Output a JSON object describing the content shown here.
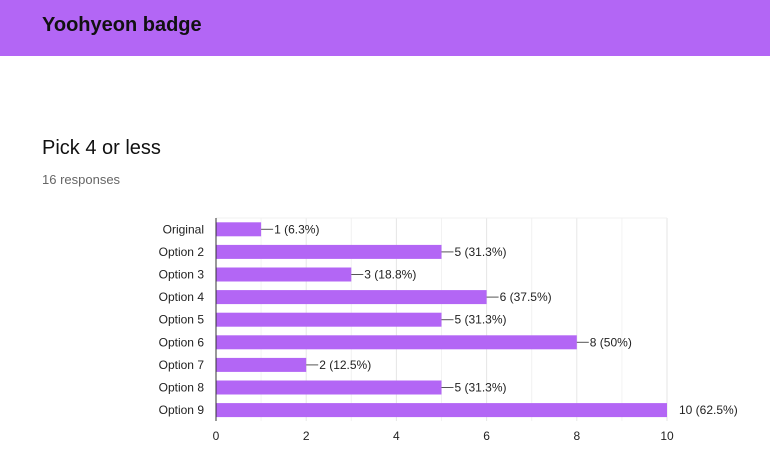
{
  "header": {
    "title": "Yoohyeon badge",
    "color": "#b366f5"
  },
  "question": {
    "title": "Pick 4 or less",
    "responses": "16 responses"
  },
  "chart_data": {
    "type": "bar",
    "orientation": "horizontal",
    "categories": [
      "Original",
      "Option 2",
      "Option 3",
      "Option 4",
      "Option 5",
      "Option 6",
      "Option 7",
      "Option 8",
      "Option 9"
    ],
    "values": [
      1,
      5,
      3,
      6,
      5,
      8,
      2,
      5,
      10
    ],
    "value_labels": [
      "1 (6.3%)",
      "5 (31.3%)",
      "3 (18.8%)",
      "6 (37.5%)",
      "5 (31.3%)",
      "8 (50%)",
      "2 (12.5%)",
      "5 (31.3%)",
      "10 (62.5%)"
    ],
    "xticks": [
      0,
      2,
      4,
      6,
      8,
      10
    ],
    "xlim": [
      0,
      10
    ],
    "grid": true,
    "bar_color": "#b366f5"
  }
}
